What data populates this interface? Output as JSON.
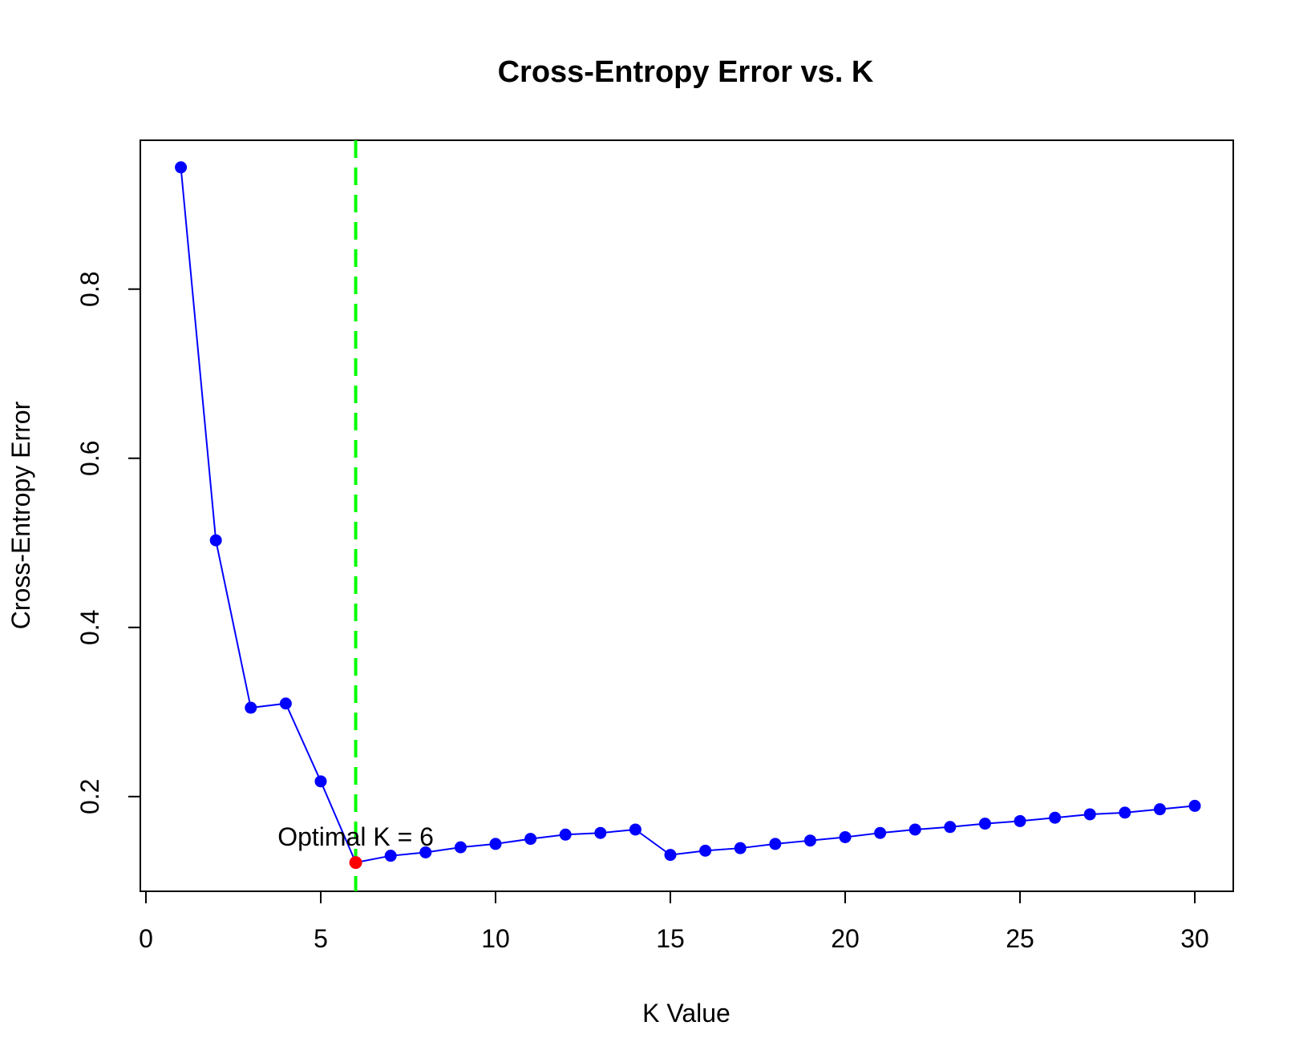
{
  "chart_data": {
    "type": "line",
    "title": "Cross-Entropy Error vs. K",
    "xlabel": "K Value",
    "ylabel": "Cross-Entropy Error",
    "xlim": [
      -0.16,
      31.1
    ],
    "ylim": [
      0.088,
      0.976
    ],
    "x_ticks": [
      0,
      5,
      10,
      15,
      20,
      25,
      30
    ],
    "y_ticks": [
      0.2,
      0.4,
      0.6,
      0.8
    ],
    "grid": false,
    "legend": "none",
    "series": [
      {
        "color": "#0000ff",
        "x": [
          1,
          2,
          3,
          4,
          5,
          6,
          7,
          8,
          9,
          10,
          11,
          12,
          13,
          14,
          15,
          16,
          17,
          18,
          19,
          20,
          21,
          22,
          23,
          24,
          25,
          26,
          27,
          28,
          29,
          30
        ],
        "y": [
          0.944,
          0.503,
          0.305,
          0.31,
          0.218,
          0.122,
          0.13,
          0.134,
          0.14,
          0.144,
          0.15,
          0.155,
          0.157,
          0.161,
          0.131,
          0.136,
          0.139,
          0.144,
          0.148,
          0.152,
          0.157,
          0.161,
          0.164,
          0.168,
          0.171,
          0.175,
          0.179,
          0.181,
          0.185,
          0.189
        ]
      }
    ],
    "optimal": {
      "k": 6,
      "y": 0.122,
      "color": "#ff0000",
      "label": "Optimal K = 6"
    },
    "vline": {
      "x": 6,
      "color": "#00ff00",
      "style": "dashed"
    }
  }
}
